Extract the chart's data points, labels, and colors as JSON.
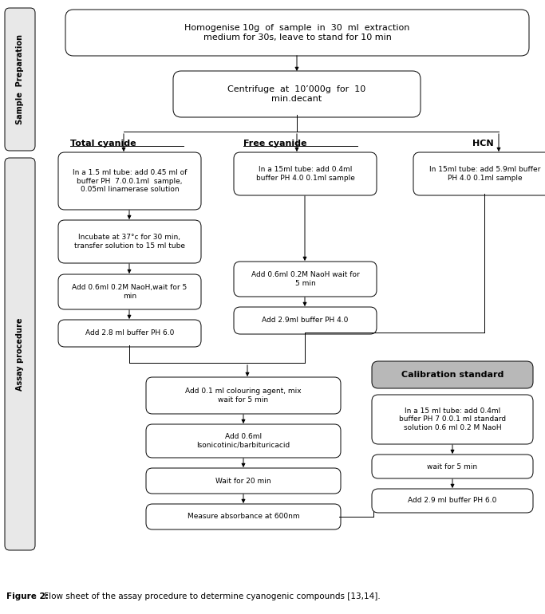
{
  "fig_w": 6.83,
  "fig_h": 7.7,
  "dpi": 100,
  "bg": "#ffffff",
  "caption_bold": "Figure 2:",
  "caption_rest": " Flow sheet of the assay procedure to determine cyanogenic compounds [13,14].",
  "sidebar1_text": "Sample  Preparation",
  "sidebar2_text": "Assay procedure",
  "box_texts": {
    "homogenise": "Homogenise 10g  of  sample  in  30  ml  extraction\nmedium for 30s, leave to stand for 10 min",
    "centrifuge": "Centrifuge  at  10’000g  for  10\nmin.decant",
    "total1": "In a 1.5 ml tube: add 0.45 ml of\nbuffer PH  7.0.0.1ml  sample,\n0.05ml linamerase solution",
    "total2": "Incubate at 37°c for 30 min,\ntransfer solution to 15 ml tube",
    "total3": "Add 0.6ml 0.2M NaoH,wait for 5\nmin",
    "total4": "Add 2.8 ml buffer PH 6.0",
    "free1": "In a 15ml tube: add 0.4ml\nbuffer PH 4.0 0.1ml sample",
    "free2": "Add 0.6ml 0.2M NaoH wait for\n5 min",
    "free3": "Add 2.9ml buffer PH 4.0",
    "hcn1": "In 15ml tube: add 5.9ml buffer\nPH 4.0 0.1ml sample",
    "color_agent": "Add 0.1 ml colouring agent, mix\nwait for 5 min",
    "isonicotinic": "Add 0.6ml\nIsonicotinic/barbituricacid",
    "wait20": "Wait for 20 min",
    "measure": "Measure absorbance at 600nm",
    "calib_title": "Calibration standard",
    "calib1": "In a 15 ml tube: add 0.4ml\nbuffer PH 7 0.0.1 ml standard\nsolution 0.6 ml 0.2 M NaoH",
    "calib2": "wait for 5 min",
    "calib3": "Add 2.9 ml buffer PH 6.0",
    "total_lbl": "Total cyanide",
    "free_lbl": "Free cyanide",
    "hcn_lbl": "HCN"
  }
}
